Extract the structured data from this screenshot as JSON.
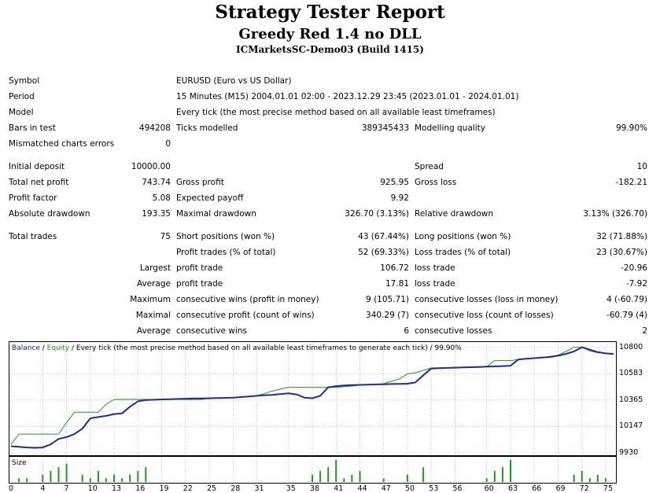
{
  "header": {
    "title": "Strategy Tester Report",
    "subtitle": "Greedy Red 1.4 no DLL",
    "server": "ICMarketsSC-Demo03 (Build 1415)"
  },
  "settings": {
    "symbol_label": "Symbol",
    "symbol_value": "EURUSD (Euro vs US Dollar)",
    "period_label": "Period",
    "period_value": "15 Minutes (M15) 2004.01.01 02:00 - 2023.12.29 23:45 (2023.01.01 - 2024.01.01)",
    "model_label": "Model",
    "model_value": "Every tick (the most precise method based on all available least timeframes)",
    "bars_label": "Bars in test",
    "bars_value": "494208",
    "ticks_label": "Ticks modelled",
    "ticks_value": "389345433",
    "quality_label": "Modelling quality",
    "quality_value": "99.90%",
    "mismatched_label": "Mismatched charts errors",
    "mismatched_value": "0"
  },
  "results": {
    "initial_deposit_label": "Initial deposit",
    "initial_deposit_value": "10000.00",
    "spread_label": "Spread",
    "spread_value": "10",
    "net_profit_label": "Total net profit",
    "net_profit_value": "743.74",
    "gross_profit_label": "Gross profit",
    "gross_profit_value": "925.95",
    "gross_loss_label": "Gross loss",
    "gross_loss_value": "-182.21",
    "profit_factor_label": "Profit factor",
    "profit_factor_value": "5.08",
    "expected_payoff_label": "Expected payoff",
    "expected_payoff_value": "9.92",
    "abs_drawdown_label": "Absolute drawdown",
    "abs_drawdown_value": "193.35",
    "max_drawdown_label": "Maximal drawdown",
    "max_drawdown_value": "326.70 (3.13%)",
    "rel_drawdown_label": "Relative drawdown",
    "rel_drawdown_value": "3.13% (326.70)"
  },
  "trades": {
    "total_label": "Total trades",
    "total_value": "75",
    "short_label": "Short positions (won %)",
    "short_value": "43 (67.44%)",
    "long_label": "Long positions (won %)",
    "long_value": "32 (71.88%)",
    "profit_trades_label": "Profit trades (% of total)",
    "profit_trades_value": "52 (69.33%)",
    "loss_trades_label": "Loss trades (% of total)",
    "loss_trades_value": "23 (30.67%)",
    "largest_label": "Largest",
    "largest_profit_label": "profit trade",
    "largest_profit_value": "106.72",
    "largest_loss_label": "loss trade",
    "largest_loss_value": "-20.96",
    "average_label": "Average",
    "average_profit_label": "profit trade",
    "average_profit_value": "17.81",
    "average_loss_label": "loss trade",
    "average_loss_value": "-7.92",
    "maximum_label": "Maximum",
    "max_wins_label": "consecutive wins (profit in money)",
    "max_wins_value": "9 (105.71)",
    "max_losses_label": "consecutive losses (loss in money)",
    "max_losses_value": "4 (-60.79)",
    "maximal_label": "Maximal",
    "maximal_profit_label": "consecutive profit (count of wins)",
    "maximal_profit_value": "340.29 (7)",
    "maximal_loss_label": "consecutive loss (count of losses)",
    "maximal_loss_value": "-60.79 (4)",
    "average2_label": "Average",
    "avg_wins_label": "consecutive wins",
    "avg_wins_value": "6",
    "avg_losses_label": "consecutive losses",
    "avg_losses_value": "2"
  },
  "chart_legend": {
    "balance": "Balance",
    "sep1": " / ",
    "equity": "Equity",
    "rest": " / Every tick (the most precise method based on all available least timeframes to generate each tick) / 99.90%"
  },
  "size_label": "Size",
  "chart_data": {
    "type": "line",
    "colors": {
      "balance": "#1f2aa0",
      "equity": "#1c9a1c",
      "size_bars": "#1c9a1c",
      "grid": "#a0a0a0"
    },
    "y_ticks": [
      "10800",
      "10583",
      "10365",
      "10147",
      "9930"
    ],
    "ylim": [
      9930,
      10830
    ],
    "x_ticks": [
      "0",
      "4",
      "7",
      "10",
      "13",
      "16",
      "19",
      "22",
      "25",
      "28",
      "31",
      "35",
      "38",
      "41",
      "44",
      "47",
      "50",
      "53",
      "56",
      "60",
      "63",
      "66",
      "69",
      "72",
      "75"
    ],
    "xlim": [
      0,
      76
    ],
    "series": [
      {
        "name": "Balance",
        "x": [
          0,
          1,
          2,
          3,
          4,
          5,
          6,
          7,
          8,
          9,
          10,
          11,
          12,
          13,
          14,
          15,
          16,
          17,
          18,
          19,
          20,
          21,
          22,
          23,
          24,
          25,
          26,
          27,
          28,
          29,
          30,
          31,
          32,
          33,
          34,
          35,
          36,
          37,
          38,
          39,
          40,
          41,
          42,
          43,
          44,
          45,
          46,
          47,
          48,
          49,
          50,
          51,
          52,
          53,
          54,
          55,
          56,
          57,
          58,
          59,
          60,
          61,
          62,
          63,
          64,
          65,
          66,
          67,
          68,
          69,
          70,
          71,
          72,
          73,
          74,
          75,
          76
        ],
        "values": [
          9985,
          9980,
          9975,
          9972,
          9975,
          10000,
          10045,
          10060,
          10085,
          10130,
          10215,
          10225,
          10235,
          10250,
          10255,
          10310,
          10355,
          10365,
          10368,
          10370,
          10372,
          10374,
          10376,
          10378,
          10378,
          10380,
          10382,
          10383,
          10385,
          10390,
          10395,
          10400,
          10405,
          10408,
          10415,
          10420,
          10412,
          10385,
          10380,
          10400,
          10470,
          10480,
          10485,
          10488,
          10490,
          10492,
          10494,
          10495,
          10497,
          10498,
          10500,
          10510,
          10570,
          10625,
          10628,
          10630,
          10632,
          10634,
          10636,
          10638,
          10640,
          10642,
          10645,
          10648,
          10700,
          10705,
          10710,
          10715,
          10720,
          10730,
          10745,
          10765,
          10800,
          10780,
          10760,
          10750,
          10745
        ]
      },
      {
        "name": "Equity",
        "x": [
          0,
          1,
          2,
          3,
          4,
          5,
          6,
          7,
          8,
          9,
          10,
          11,
          12,
          13,
          14,
          15,
          16,
          17,
          18,
          19,
          20,
          21,
          22,
          23,
          24,
          25,
          26,
          27,
          28,
          29,
          30,
          31,
          32,
          33,
          34,
          35,
          36,
          37,
          38,
          39,
          40,
          41,
          42,
          43,
          44,
          45,
          46,
          47,
          48,
          49,
          50,
          51,
          52,
          53,
          54,
          55,
          56,
          57,
          58,
          59,
          60,
          61,
          62,
          63,
          64,
          65,
          66,
          67,
          68,
          69,
          70,
          71,
          72,
          73,
          74,
          75,
          76
        ],
        "values": [
          10000,
          10085,
          10085,
          10085,
          10085,
          10085,
          10085,
          10180,
          10265,
          10265,
          10265,
          10265,
          10330,
          10370,
          10370,
          10370,
          10370,
          10370,
          10370,
          10370,
          10370,
          10370,
          10370,
          10370,
          10370,
          10380,
          10380,
          10383,
          10385,
          10390,
          10395,
          10400,
          10420,
          10440,
          10455,
          10470,
          10470,
          10470,
          10470,
          10470,
          10470,
          10470,
          10475,
          10480,
          10488,
          10492,
          10494,
          10500,
          10520,
          10540,
          10580,
          10590,
          10610,
          10630,
          10630,
          10632,
          10634,
          10636,
          10638,
          10640,
          10640,
          10690,
          10690,
          10690,
          10700,
          10705,
          10710,
          10715,
          10725,
          10735,
          10765,
          10800,
          10800,
          10770,
          10755,
          10750,
          10745
        ]
      }
    ],
    "size_bars": {
      "x": [
        1,
        2,
        4,
        5,
        6,
        7,
        9,
        10,
        11,
        12,
        13,
        14,
        15,
        16,
        17,
        38,
        39,
        40,
        41,
        42,
        43,
        44,
        47,
        50,
        52,
        60,
        61,
        62,
        63,
        71,
        72,
        73,
        74,
        75
      ],
      "values": [
        1,
        1,
        2,
        3,
        4,
        5,
        2,
        1,
        3,
        1,
        2,
        1,
        2,
        3,
        4,
        2,
        3,
        4,
        6,
        1,
        2,
        3,
        1,
        2,
        4,
        1,
        3,
        4,
        6,
        2,
        3,
        1,
        2,
        1
      ]
    }
  }
}
